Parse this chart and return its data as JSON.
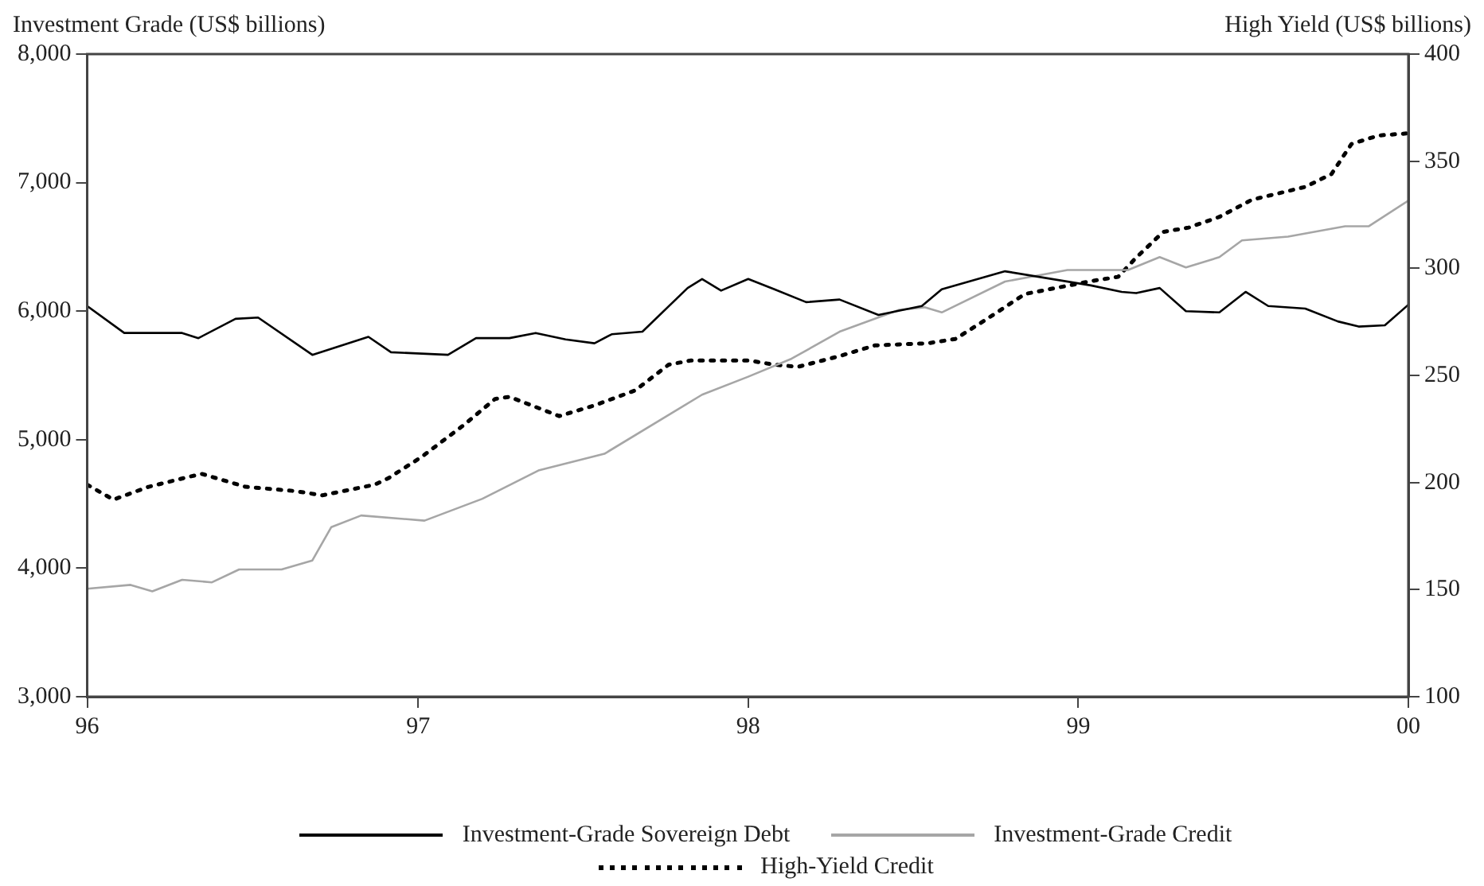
{
  "chart_data": {
    "type": "line",
    "ylabel": "Investment Grade (US$ billions)",
    "y2label": "High Yield (US$ billions)",
    "xlim": [
      "1996",
      "2000"
    ],
    "xticks": [
      {
        "value": "1996",
        "label": "96"
      },
      {
        "value": "1997",
        "label": "97"
      },
      {
        "value": "1998",
        "label": "98"
      },
      {
        "value": "1999",
        "label": "99"
      },
      {
        "value": "2000",
        "label": "00"
      }
    ],
    "ylim": [
      3000,
      8000
    ],
    "yticks": [
      {
        "value": 3000,
        "label": "3,000"
      },
      {
        "value": 4000,
        "label": "4,000"
      },
      {
        "value": 5000,
        "label": "5,000"
      },
      {
        "value": 6000,
        "label": "6,000"
      },
      {
        "value": 7000,
        "label": "7,000"
      },
      {
        "value": 8000,
        "label": "8,000"
      }
    ],
    "y2lim": [
      100,
      400
    ],
    "y2ticks": [
      100,
      150,
      200,
      250,
      300,
      350,
      400
    ],
    "grid": false,
    "legend": "bottom",
    "marker": "none",
    "series": [
      {
        "name": "Investment-Grade Sovereign Debt",
        "color": "#000000",
        "line_style": "solid",
        "x": [
          "1996-01-01",
          "1996-02-11",
          "1996-04-15",
          "1996-05-03",
          "1996-06-13",
          "1996-07-08",
          "1996-09-06",
          "1996-11-07",
          "1996-12-02",
          "1997-02-03",
          "1997-03-06",
          "1997-04-12",
          "1997-05-11",
          "1997-06-13",
          "1997-07-15",
          "1997-08-03",
          "1997-09-06",
          "1997-10-26",
          "1997-11-11",
          "1997-12-02",
          "1998-01-01",
          "1998-01-30",
          "1998-03-06",
          "1998-04-12",
          "1998-05-25",
          "1998-07-12",
          "1998-08-03",
          "1998-10-12",
          "1999-01-15",
          "1999-02-18",
          "1999-03-06",
          "1999-04-01",
          "1999-04-30",
          "1999-06-06",
          "1999-07-05",
          "1999-07-30",
          "1999-09-09",
          "1999-10-15",
          "1999-11-07",
          "1999-12-06",
          "2000-01-01"
        ],
        "values": [
          6040,
          5830,
          5830,
          5790,
          5940,
          5950,
          5660,
          5800,
          5680,
          5660,
          5790,
          5790,
          5830,
          5780,
          5750,
          5820,
          5840,
          6180,
          6250,
          6160,
          6250,
          6170,
          6070,
          6090,
          5970,
          6040,
          6170,
          6310,
          6200,
          6150,
          6140,
          6180,
          6000,
          5990,
          6150,
          6040,
          6020,
          5920,
          5880,
          5890,
          6050
        ]
      },
      {
        "name": "Investment-Grade Credit",
        "color": "#a6a6a6",
        "line_style": "solid",
        "x": [
          "1996-01-01",
          "1996-02-18",
          "1996-03-13",
          "1996-04-15",
          "1996-05-18",
          "1996-06-17",
          "1996-08-03",
          "1996-09-06",
          "1996-09-27",
          "1996-10-30",
          "1997-01-08",
          "1997-03-13",
          "1997-05-14",
          "1997-07-26",
          "1997-11-11",
          "1998-01-01",
          "1998-02-18",
          "1998-04-12",
          "1998-06-17",
          "1998-07-15",
          "1998-08-03",
          "1998-10-12",
          "1998-12-20",
          "1999-02-25",
          "1999-04-01",
          "1999-04-30",
          "1999-06-06",
          "1999-07-01",
          "1999-08-21",
          "1999-10-23",
          "1999-11-18",
          "2000-01-01"
        ],
        "values": [
          3840,
          3870,
          3820,
          3910,
          3890,
          3990,
          3990,
          4060,
          4320,
          4410,
          4370,
          4540,
          4760,
          4890,
          5350,
          5490,
          5630,
          5840,
          6010,
          6030,
          5990,
          6230,
          6320,
          6320,
          6420,
          6340,
          6420,
          6550,
          6580,
          6660,
          6660,
          6860
        ]
      },
      {
        "name": "High-Yield Credit",
        "color": "#000000",
        "line_style": "dotted",
        "axis": "y2",
        "x": [
          "1996-01-01",
          "1996-01-30",
          "1996-03-09",
          "1996-04-26",
          "1996-05-07",
          "1996-06-24",
          "1996-08-18",
          "1996-09-17",
          "1996-11-14",
          "1996-11-29",
          "1997-01-05",
          "1997-02-21",
          "1997-03-27",
          "1997-04-12",
          "1997-06-06",
          "1997-07-15",
          "1997-08-29",
          "1997-10-05",
          "1997-10-30",
          "1998-01-01",
          "1998-01-30",
          "1998-02-25",
          "1998-04-12",
          "1998-05-21",
          "1998-07-19",
          "1998-08-18",
          "1998-09-17",
          "1998-11-03",
          "1999-01-15",
          "1999-02-14",
          "1999-03-06",
          "1999-04-05",
          "1999-05-03",
          "1999-06-06",
          "1999-07-12",
          "1999-09-09",
          "1999-10-08",
          "1999-10-30",
          "1999-11-29",
          "2000-01-01"
        ],
        "values": [
          199,
          192,
          198,
          203,
          204,
          198,
          196,
          194,
          199,
          202,
          212,
          227,
          239,
          240,
          231,
          236,
          243,
          255,
          257,
          257,
          255,
          254,
          259,
          264,
          265,
          267,
          275,
          288,
          294,
          296,
          305,
          317,
          319,
          324,
          332,
          338,
          344,
          358,
          362,
          363
        ]
      }
    ]
  }
}
